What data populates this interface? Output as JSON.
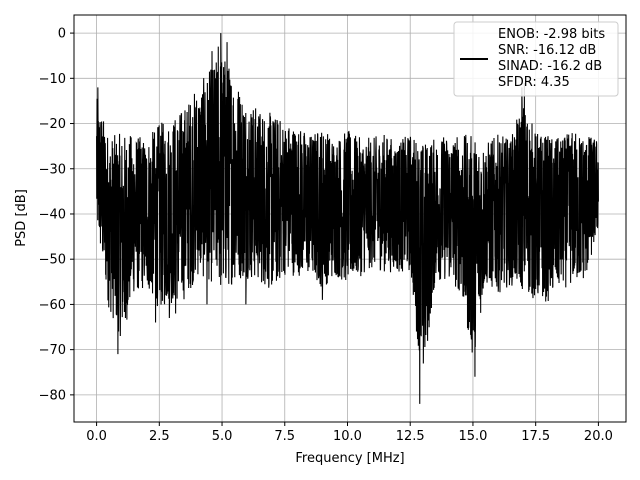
{
  "chart_data": {
    "type": "line",
    "title": "",
    "xlabel": "Frequency [MHz]",
    "ylabel": "PSD [dB]",
    "xlim": [
      -0.9,
      21.1
    ],
    "ylim": [
      -86,
      4
    ],
    "xticks": [
      0.0,
      2.5,
      5.0,
      7.5,
      10.0,
      12.5,
      15.0,
      17.5,
      20.0
    ],
    "xtick_labels": [
      "0.0",
      "2.5",
      "5.0",
      "7.5",
      "10.0",
      "12.5",
      "15.0",
      "17.5",
      "20.0"
    ],
    "yticks": [
      0,
      -10,
      -20,
      -30,
      -40,
      -50,
      -60,
      -70,
      -80
    ],
    "ytick_labels": [
      "0",
      "−10",
      "−20",
      "−30",
      "−40",
      "−50",
      "−60",
      "−70",
      "−80"
    ],
    "grid": true,
    "legend_position": "top-right",
    "series": [
      {
        "name": "",
        "color": "#000000",
        "x_range": [
          0.0,
          20.0
        ],
        "envelope": {
          "x": [
            0.0,
            0.5,
            1.0,
            1.5,
            2.0,
            2.5,
            3.0,
            3.5,
            4.0,
            4.5,
            5.0,
            5.5,
            6.0,
            6.5,
            7.0,
            7.5,
            8.0,
            8.5,
            9.0,
            9.5,
            10.0,
            10.5,
            11.0,
            11.5,
            12.0,
            12.5,
            13.0,
            13.5,
            14.0,
            14.5,
            15.0,
            15.5,
            16.0,
            16.5,
            17.0,
            17.5,
            18.0,
            18.5,
            19.0,
            19.5,
            20.0
          ],
          "upper": [
            -12,
            -20,
            -19,
            -20,
            -21,
            -17,
            -16,
            -13,
            -9,
            -5,
            0,
            -6,
            -12,
            -14,
            -15,
            -17,
            -18,
            -20,
            -18,
            -21,
            -19,
            -21,
            -21,
            -20,
            -22,
            -20,
            -20,
            -21,
            -20,
            -20,
            -19,
            -22,
            -20,
            -21,
            -12,
            -19,
            -20,
            -21,
            -19,
            -20,
            -22
          ],
          "lower": [
            -46,
            -64,
            -71,
            -60,
            -59,
            -64,
            -63,
            -62,
            -57,
            -58,
            -62,
            -58,
            -57,
            -58,
            -60,
            -56,
            -56,
            -56,
            -59,
            -56,
            -58,
            -56,
            -54,
            -55,
            -55,
            -55,
            -82,
            -57,
            -57,
            -60,
            -76,
            -58,
            -60,
            -58,
            -60,
            -62,
            -62,
            -59,
            -58,
            -57,
            -45
          ]
        }
      }
    ],
    "dips": [
      [
        0.85,
        -71
      ],
      [
        12.88,
        -82
      ],
      [
        15.08,
        -76
      ],
      [
        1.15,
        -63
      ],
      [
        2.9,
        -63
      ],
      [
        4.4,
        -60
      ],
      [
        2.35,
        -64
      ],
      [
        3.15,
        -62
      ],
      [
        5.95,
        -60
      ],
      [
        12.75,
        -66
      ],
      [
        13.3,
        -62
      ],
      [
        14.8,
        -60
      ],
      [
        9.0,
        -59
      ]
    ],
    "peaks": [
      [
        0.05,
        -12
      ],
      [
        4.95,
        0
      ],
      [
        4.85,
        -3
      ],
      [
        5.2,
        -2
      ],
      [
        4.6,
        -4
      ],
      [
        16.95,
        -12
      ],
      [
        17.05,
        -11
      ]
    ]
  },
  "legend": {
    "lines": [
      "ENOB: -2.98 bits",
      "SNR: -16.12 dB",
      "SINAD: -16.2 dB",
      "SFDR: 4.35"
    ]
  }
}
